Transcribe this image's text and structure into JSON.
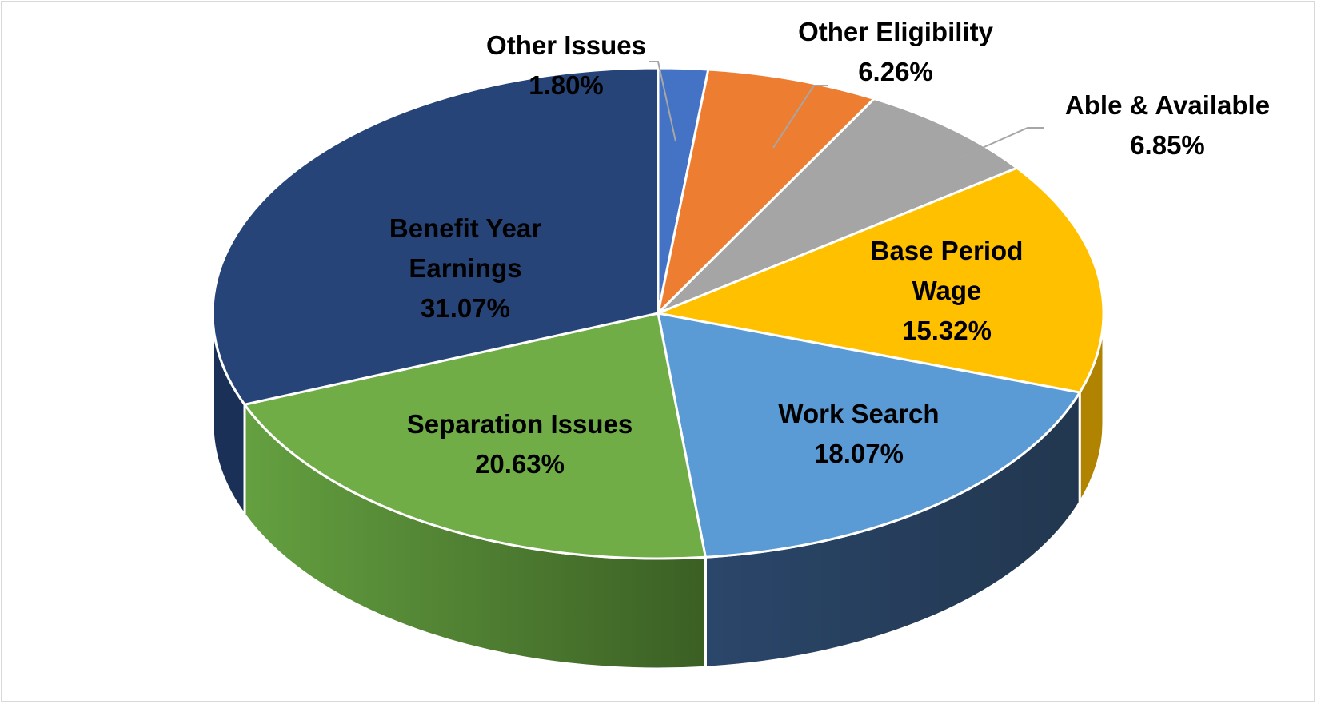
{
  "chart_data": {
    "type": "pie",
    "style": "3d",
    "title": "",
    "legend": "none",
    "slices": [
      {
        "name": "Other Issues",
        "label_lines": [
          "Other Issues"
        ],
        "value_text": "1.80%",
        "value": 1.8,
        "color": "#4472c4",
        "side_color": "#2f4f87",
        "label_pos": "outside"
      },
      {
        "name": "Other Eligibility",
        "label_lines": [
          "Other Eligibility"
        ],
        "value_text": "6.26%",
        "value": 6.26,
        "color": "#ed7d31",
        "side_color": "#a9571f",
        "label_pos": "outside"
      },
      {
        "name": "Able & Available",
        "label_lines": [
          "Able & Available"
        ],
        "value_text": "6.85%",
        "value": 6.85,
        "color": "#a5a5a5",
        "side_color": "#6f6f6f",
        "label_pos": "outside"
      },
      {
        "name": "Base Period Wage",
        "label_lines": [
          "Base Period",
          "Wage"
        ],
        "value_text": "15.32%",
        "value": 15.32,
        "color": "#ffc000",
        "side_color": "#b08400",
        "label_pos": "inside"
      },
      {
        "name": "Work Search",
        "label_lines": [
          "Work Search"
        ],
        "value_text": "18.07%",
        "value": 18.07,
        "color": "#5b9bd5",
        "side_color": "#253d55",
        "label_pos": "inside"
      },
      {
        "name": "Separation Issues",
        "label_lines": [
          "Separation Issues"
        ],
        "value_text": "20.63%",
        "value": 20.63,
        "color": "#70ad47",
        "side_color": "#4a7a2e",
        "label_pos": "inside"
      },
      {
        "name": "Benefit Year Earnings",
        "label_lines": [
          "Benefit Year",
          "Earnings"
        ],
        "value_text": "31.07%",
        "value": 31.07,
        "color": "#264478",
        "side_color": "#1a3057",
        "label_pos": "inside"
      }
    ]
  }
}
